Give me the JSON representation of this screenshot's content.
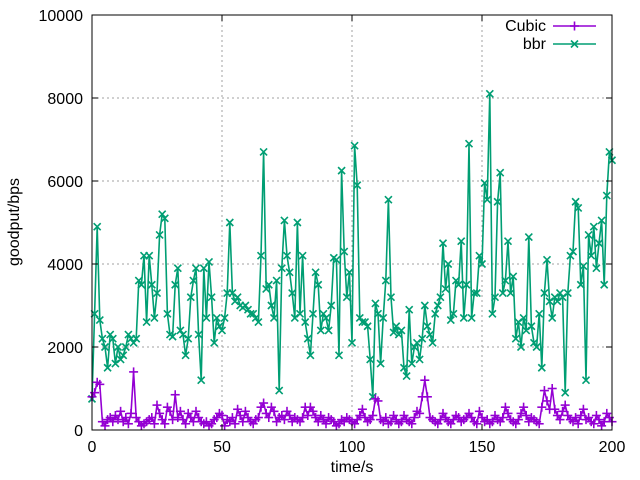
{
  "chart_data": {
    "type": "line",
    "xlabel": "time/s",
    "ylabel": "goodput/bps",
    "xlim": [
      0,
      200
    ],
    "ylim": [
      0,
      10000
    ],
    "x_ticks": [
      0,
      50,
      100,
      150,
      200
    ],
    "y_ticks": [
      0,
      2000,
      4000,
      6000,
      8000,
      10000
    ],
    "grid": true,
    "legend_position": "top-right",
    "series": [
      {
        "name": "Cubic",
        "color": "#9400d3",
        "marker": "plus",
        "x": [
          0,
          1,
          2,
          3,
          4,
          5,
          6,
          7,
          8,
          9,
          10,
          11,
          12,
          13,
          14,
          15,
          16,
          17,
          18,
          19,
          20,
          21,
          22,
          23,
          24,
          25,
          26,
          27,
          28,
          29,
          30,
          31,
          32,
          33,
          34,
          35,
          36,
          37,
          38,
          39,
          40,
          41,
          42,
          43,
          44,
          45,
          46,
          47,
          48,
          49,
          50,
          51,
          52,
          53,
          54,
          55,
          56,
          57,
          58,
          59,
          60,
          61,
          62,
          63,
          64,
          65,
          66,
          67,
          68,
          69,
          70,
          71,
          72,
          73,
          74,
          75,
          76,
          77,
          78,
          79,
          80,
          81,
          82,
          83,
          84,
          85,
          86,
          87,
          88,
          89,
          90,
          91,
          92,
          93,
          94,
          95,
          96,
          97,
          98,
          99,
          100,
          101,
          102,
          103,
          104,
          105,
          106,
          107,
          108,
          109,
          110,
          111,
          112,
          113,
          114,
          115,
          116,
          117,
          118,
          119,
          120,
          121,
          122,
          123,
          124,
          125,
          126,
          127,
          128,
          129,
          130,
          131,
          132,
          133,
          134,
          135,
          136,
          137,
          138,
          139,
          140,
          141,
          142,
          143,
          144,
          145,
          146,
          147,
          148,
          149,
          150,
          151,
          152,
          153,
          154,
          155,
          156,
          157,
          158,
          159,
          160,
          161,
          162,
          163,
          164,
          165,
          166,
          167,
          168,
          169,
          170,
          171,
          172,
          173,
          174,
          175,
          176,
          177,
          178,
          179,
          180,
          181,
          182,
          183,
          184,
          185,
          186,
          187,
          188,
          189,
          190,
          191,
          192,
          193,
          194,
          195,
          196,
          197,
          198,
          199,
          200
        ],
        "values": [
          800,
          900,
          1150,
          1100,
          200,
          100,
          250,
          300,
          200,
          350,
          250,
          450,
          200,
          300,
          150,
          400,
          1400,
          300,
          200,
          100,
          150,
          200,
          250,
          300,
          150,
          600,
          400,
          250,
          150,
          550,
          450,
          250,
          850,
          300,
          450,
          250,
          150,
          400,
          300,
          200,
          450,
          300,
          200,
          150,
          200,
          100,
          150,
          250,
          300,
          400,
          350,
          100,
          250,
          200,
          300,
          150,
          500,
          350,
          200,
          450,
          300,
          200,
          150,
          250,
          300,
          550,
          650,
          400,
          300,
          550,
          450,
          200,
          300,
          350,
          250,
          450,
          350,
          200,
          300,
          250,
          200,
          300,
          550,
          350,
          550,
          450,
          300,
          200,
          350,
          250,
          150,
          300,
          250,
          200,
          100,
          150,
          250,
          200,
          300,
          250,
          200,
          150,
          250,
          350,
          500,
          300,
          200,
          250,
          350,
          750,
          700,
          250,
          200,
          300,
          150,
          200,
          350,
          250,
          150,
          200,
          350,
          250,
          200,
          150,
          300,
          450,
          400,
          800,
          1200,
          800,
          300,
          250,
          200,
          150,
          250,
          400,
          300,
          200,
          150,
          250,
          350,
          300,
          200,
          250,
          300,
          400,
          300,
          200,
          150,
          450,
          300,
          200,
          250,
          150,
          200,
          350,
          250,
          200,
          300,
          550,
          400,
          250,
          200,
          150,
          250,
          400,
          550,
          350,
          200,
          300,
          250,
          200,
          150,
          550,
          950,
          700,
          500,
          1000,
          500,
          350,
          250,
          450,
          600,
          350,
          250,
          200,
          300,
          150,
          350,
          500,
          250,
          300,
          200,
          150,
          350,
          250,
          100,
          200,
          400,
          300,
          200
        ]
      },
      {
        "name": "bbr",
        "color": "#009e73",
        "marker": "cross",
        "x": [
          0,
          1,
          2,
          3,
          4,
          5,
          6,
          7,
          8,
          9,
          10,
          11,
          12,
          13,
          14,
          15,
          16,
          17,
          18,
          19,
          20,
          21,
          22,
          23,
          24,
          25,
          26,
          27,
          28,
          29,
          30,
          31,
          32,
          33,
          34,
          35,
          36,
          37,
          38,
          39,
          40,
          41,
          42,
          43,
          44,
          45,
          46,
          47,
          48,
          49,
          50,
          51,
          52,
          53,
          54,
          55,
          56,
          57,
          58,
          59,
          60,
          61,
          62,
          63,
          64,
          65,
          66,
          67,
          68,
          69,
          70,
          71,
          72,
          73,
          74,
          75,
          76,
          77,
          78,
          79,
          80,
          81,
          82,
          83,
          84,
          85,
          86,
          87,
          88,
          89,
          90,
          91,
          92,
          93,
          94,
          95,
          96,
          97,
          98,
          99,
          100,
          101,
          102,
          103,
          104,
          105,
          106,
          107,
          108,
          109,
          110,
          111,
          112,
          113,
          114,
          115,
          116,
          117,
          118,
          119,
          120,
          121,
          122,
          123,
          124,
          125,
          126,
          127,
          128,
          129,
          130,
          131,
          132,
          133,
          134,
          135,
          136,
          137,
          138,
          139,
          140,
          141,
          142,
          143,
          144,
          145,
          146,
          147,
          148,
          149,
          150,
          151,
          152,
          153,
          154,
          155,
          156,
          157,
          158,
          159,
          160,
          161,
          162,
          163,
          164,
          165,
          166,
          167,
          168,
          169,
          170,
          171,
          172,
          173,
          174,
          175,
          176,
          177,
          178,
          179,
          180,
          181,
          182,
          183,
          184,
          185,
          186,
          187,
          188,
          189,
          190,
          191,
          192,
          193,
          194,
          195,
          196,
          197,
          198,
          199,
          200
        ],
        "values": [
          750,
          2800,
          4900,
          2650,
          2200,
          2000,
          1500,
          2300,
          2200,
          1600,
          2000,
          1700,
          1800,
          2000,
          2300,
          2200,
          2100,
          2200,
          3600,
          3500,
          4200,
          2600,
          4200,
          3500,
          2700,
          3300,
          4700,
          5200,
          5100,
          2800,
          2300,
          2250,
          3500,
          3900,
          2400,
          2300,
          1800,
          2200,
          3200,
          3600,
          3900,
          2300,
          1200,
          3900,
          2700,
          4050,
          3200,
          2100,
          2700,
          2500,
          2400,
          2700,
          3300,
          5000,
          3300,
          3100,
          3200,
          3000,
          2950,
          3000,
          2900,
          2800,
          2800,
          2700,
          2600,
          4200,
          6700,
          3400,
          3500,
          3000,
          2700,
          3600,
          950,
          3900,
          5050,
          4200,
          3800,
          3300,
          2700,
          5000,
          2800,
          4200,
          2600,
          2200,
          1800,
          2800,
          3800,
          3500,
          2400,
          2800,
          2700,
          2400,
          3000,
          4150,
          4100,
          1800,
          6250,
          4300,
          3200,
          3800,
          2100,
          6850,
          5900,
          2700,
          2600,
          2600,
          2500,
          1700,
          800,
          3050,
          2800,
          1600,
          2700,
          3600,
          5550,
          3200,
          2350,
          2500,
          2300,
          2400,
          1500,
          1300,
          2900,
          1600,
          2000,
          2100,
          1700,
          2200,
          3000,
          2500,
          2300,
          2100,
          2800,
          3000,
          3200,
          4500,
          3400,
          4000,
          2650,
          2800,
          3600,
          3500,
          4550,
          2700,
          3500,
          6900,
          2700,
          3300,
          3300,
          4200,
          4000,
          5950,
          5550,
          8100,
          2800,
          3200,
          5500,
          6200,
          3300,
          3600,
          4550,
          3300,
          3700,
          2200,
          2600,
          2000,
          2700,
          2400,
          4650,
          2500,
          2100,
          2000,
          2800,
          1500,
          3300,
          4100,
          3100,
          2700,
          3200,
          3100,
          3300,
          3200,
          900,
          3300,
          4200,
          4300,
          5500,
          5350,
          3500,
          3950,
          1200,
          4700,
          4200,
          4900,
          3900,
          4500,
          5050,
          3500,
          5650,
          6700,
          6500
        ]
      }
    ]
  }
}
